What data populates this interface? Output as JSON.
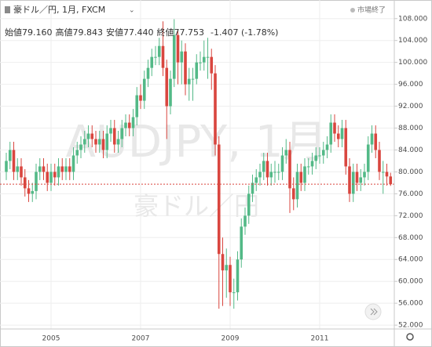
{
  "header": {
    "symbol": "豪ドル／円, 1月, FXCM",
    "status": "市場終了",
    "legend": [
      {
        "label": "始値",
        "value": "79.160"
      },
      {
        "label": "高値",
        "value": "79.843"
      },
      {
        "label": "安値",
        "value": "77.440"
      },
      {
        "label": "終値",
        "value": "77.753"
      }
    ],
    "change": "-1.407 (-1.78%)"
  },
  "watermark": {
    "symbol": "AUDJPY, 1月",
    "name": "豪ドル／円"
  },
  "chart_data": {
    "type": "candlestick",
    "up_color": "#53b987",
    "down_color": "#d9463f",
    "categories": [
      null,
      null,
      null,
      null,
      null,
      null,
      null,
      null,
      null,
      null,
      null,
      null,
      "2005",
      null,
      null,
      null,
      null,
      null,
      null,
      null,
      null,
      null,
      null,
      null,
      null,
      null,
      null,
      null,
      null,
      null,
      null,
      null,
      null,
      null,
      null,
      null,
      "2007",
      null,
      null,
      null,
      null,
      null,
      null,
      null,
      null,
      null,
      null,
      null,
      null,
      null,
      null,
      null,
      null,
      null,
      null,
      null,
      null,
      null,
      null,
      null,
      "2009",
      null,
      null,
      null,
      null,
      null,
      null,
      null,
      null,
      null,
      null,
      null,
      null,
      null,
      null,
      null,
      null,
      null,
      null,
      null,
      null,
      null,
      null,
      null,
      "2011",
      null,
      null,
      null,
      null,
      null,
      null,
      null,
      null,
      null,
      null,
      null,
      null,
      null,
      null,
      null,
      null,
      null,
      null,
      null
    ],
    "open": [
      80,
      82,
      84,
      80,
      81,
      79,
      77,
      76,
      76.5,
      80,
      81,
      80,
      78,
      80,
      79,
      81,
      80,
      81,
      80,
      83,
      84,
      85,
      86,
      87,
      86,
      85,
      86,
      84,
      87,
      88,
      85,
      86,
      88,
      89,
      88,
      90,
      94,
      93,
      97,
      99,
      101,
      101,
      103,
      99,
      92,
      97,
      105,
      100,
      102,
      96,
      97,
      97,
      100,
      100,
      101,
      101,
      98,
      85,
      65,
      62,
      63,
      58,
      58,
      64,
      70,
      72,
      76,
      78,
      79,
      80,
      82,
      79,
      80,
      80,
      80,
      83,
      84,
      77,
      75,
      80,
      78,
      81,
      81,
      82,
      83,
      83,
      84,
      85,
      89,
      87,
      86,
      88,
      81,
      76,
      80,
      78,
      79,
      80,
      85,
      87,
      84,
      80,
      80,
      79.16
    ],
    "high": [
      83.5,
      85.5,
      85.5,
      82.5,
      82.5,
      80.5,
      78.5,
      78,
      81.5,
      82.5,
      82.5,
      81.5,
      81.5,
      81.5,
      82.5,
      82.5,
      82.5,
      82.5,
      84.5,
      85.5,
      86.5,
      87.5,
      88.5,
      88.5,
      87.5,
      87.5,
      87.5,
      88.5,
      89.5,
      89.5,
      87.5,
      89.5,
      90.5,
      90.5,
      91.5,
      95.5,
      96,
      98.5,
      100.5,
      102.5,
      103,
      104.5,
      107.5,
      100.5,
      98.5,
      107.9,
      106,
      104,
      103.5,
      99,
      99,
      101.5,
      102,
      104,
      104.5,
      102.5,
      99.5,
      86.5,
      68,
      66,
      64.5,
      60.5,
      65.5,
      71.5,
      73.5,
      77.5,
      79.5,
      80.5,
      81.5,
      83.5,
      83.5,
      81.5,
      82,
      81.5,
      84.5,
      86,
      85.5,
      79,
      81.5,
      81.5,
      82.5,
      82.5,
      83.5,
      84.5,
      84.5,
      85.5,
      86.5,
      90.5,
      90.5,
      88.5,
      89.5,
      89.5,
      82.5,
      81.5,
      81.5,
      80.5,
      81.5,
      86.5,
      88.5,
      88.5,
      85.5,
      82,
      81.5,
      79.843
    ],
    "low": [
      78.5,
      80.5,
      78.5,
      78.5,
      77.5,
      75.5,
      74.5,
      74.5,
      75,
      78.5,
      78.5,
      76.5,
      76.5,
      77.5,
      77.5,
      78.5,
      78.5,
      78.5,
      78.5,
      81.5,
      82.5,
      83.5,
      84.5,
      84.5,
      83.5,
      83.5,
      82.5,
      82.5,
      85.5,
      83.5,
      83.5,
      84.5,
      86.5,
      86.5,
      86.5,
      88.5,
      91.5,
      91.5,
      95.5,
      97.5,
      99.5,
      99.5,
      97.5,
      86,
      90.5,
      95.5,
      96,
      96,
      94,
      93,
      93,
      96,
      98.5,
      98.5,
      97,
      95,
      83,
      55,
      55.5,
      57,
      55.5,
      55,
      56.5,
      62.5,
      68.5,
      70.5,
      74.5,
      76.5,
      77.5,
      78.5,
      77.5,
      77.5,
      78,
      78.5,
      78.5,
      81.5,
      72.5,
      73,
      73.5,
      76.5,
      76.5,
      79.5,
      79.5,
      80.5,
      81.5,
      81.5,
      82.5,
      83.5,
      85.5,
      84.5,
      84.5,
      79.5,
      74.5,
      74.5,
      76.5,
      76.5,
      77.5,
      78.5,
      83.5,
      82.5,
      78.5,
      76,
      77.5,
      77.44
    ],
    "close": [
      82,
      84,
      80,
      81,
      79,
      77,
      76,
      76.5,
      80,
      81,
      80,
      78,
      80,
      79,
      81,
      80,
      81,
      80,
      83,
      84,
      85,
      86,
      87,
      86,
      85,
      86,
      84,
      87,
      88,
      85,
      86,
      88,
      89,
      88,
      90,
      94,
      93,
      97,
      99,
      101,
      101,
      103,
      99,
      92,
      97,
      105,
      100,
      102,
      96,
      97,
      97,
      100,
      100,
      101,
      101,
      98,
      85,
      65,
      62,
      63,
      58,
      58,
      64,
      70,
      72,
      76,
      78,
      79,
      80,
      82,
      79,
      80,
      80,
      80,
      83,
      84,
      77,
      75,
      80,
      78,
      81,
      81,
      82,
      83,
      83,
      84,
      85,
      89,
      87,
      86,
      88,
      81,
      76,
      80,
      78,
      79,
      80,
      85,
      87,
      84,
      80,
      80,
      79.16,
      77.753
    ],
    "ylim": [
      51.3,
      111.4
    ],
    "yticks": [
      {
        "value": 52,
        "label": "52.000"
      },
      {
        "value": 56,
        "label": "56.000"
      },
      {
        "value": 60,
        "label": "60.000"
      },
      {
        "value": 64,
        "label": "64.000"
      },
      {
        "value": 68,
        "label": "68.000"
      },
      {
        "value": 72,
        "label": "72.000"
      },
      {
        "value": 76,
        "label": "76.000"
      },
      {
        "value": 80,
        "label": "80.000"
      },
      {
        "value": 84,
        "label": "84.000"
      },
      {
        "value": 88,
        "label": "88.000"
      },
      {
        "value": 92,
        "label": "92.000"
      },
      {
        "value": 96,
        "label": "96.000"
      },
      {
        "value": 100,
        "label": "100.000"
      },
      {
        "value": 104,
        "label": "104.000"
      },
      {
        "value": 108,
        "label": "108.000"
      }
    ],
    "grid": true
  }
}
